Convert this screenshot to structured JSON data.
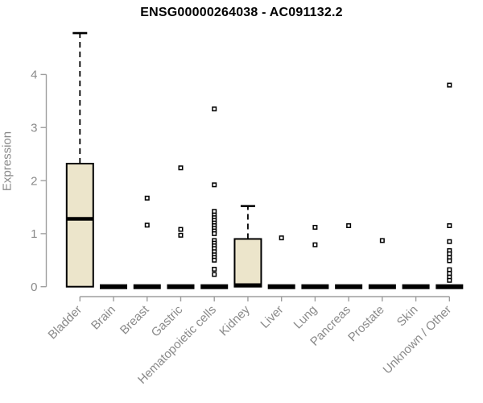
{
  "page": {
    "background": "#ffffff"
  },
  "chart_data": {
    "type": "box",
    "title": "ENSG00000264038 - AC091132.2",
    "ylabel": "Expression",
    "xlabel": "",
    "ylim": [
      0,
      4.85
    ],
    "yticks": [
      "0",
      "1",
      "2",
      "3",
      "4"
    ],
    "grid": "off",
    "legend": "none",
    "marker": "open-square",
    "categories": [
      "Bladder",
      "Brain",
      "Breast",
      "Gastric",
      "Hematopoietic cells",
      "Kidney",
      "Liver",
      "Lung",
      "Pancreas",
      "Prostate",
      "Skin",
      "Unknown / Other"
    ],
    "boxes": [
      {
        "category": "Bladder",
        "q1": 0,
        "median": 1.28,
        "q3": 2.32,
        "whisker_low": 0,
        "whisker_high": 4.78,
        "outliers": []
      },
      {
        "category": "Brain",
        "q1": 0,
        "median": 0,
        "q3": 0,
        "whisker_low": 0,
        "whisker_high": 0,
        "outliers": []
      },
      {
        "category": "Breast",
        "q1": 0,
        "median": 0,
        "q3": 0,
        "whisker_low": 0,
        "whisker_high": 0,
        "outliers": [
          1.67,
          1.16
        ]
      },
      {
        "category": "Gastric",
        "q1": 0,
        "median": 0,
        "q3": 0,
        "whisker_low": 0,
        "whisker_high": 0,
        "outliers": [
          2.24,
          1.08,
          0.97
        ]
      },
      {
        "category": "Hematopoietic cells",
        "q1": 0,
        "median": 0,
        "q3": 0,
        "whisker_low": 0,
        "whisker_high": 0,
        "outliers": [
          3.35,
          1.92,
          1.42,
          1.35,
          1.3,
          1.25,
          1.2,
          1.15,
          1.1,
          1.05,
          1.0,
          0.87,
          0.82,
          0.77,
          0.72,
          0.66,
          0.6,
          0.55,
          0.5,
          0.33,
          0.23
        ]
      },
      {
        "category": "Kidney",
        "q1": 0,
        "median": 0.03,
        "q3": 0.9,
        "whisker_low": 0,
        "whisker_high": 1.52,
        "outliers": []
      },
      {
        "category": "Liver",
        "q1": 0,
        "median": 0,
        "q3": 0,
        "whisker_low": 0,
        "whisker_high": 0,
        "outliers": [
          0.92
        ]
      },
      {
        "category": "Lung",
        "q1": 0,
        "median": 0,
        "q3": 0,
        "whisker_low": 0,
        "whisker_high": 0,
        "outliers": [
          1.12,
          0.79
        ]
      },
      {
        "category": "Pancreas",
        "q1": 0,
        "median": 0,
        "q3": 0,
        "whisker_low": 0,
        "whisker_high": 0,
        "outliers": [
          1.15
        ]
      },
      {
        "category": "Prostate",
        "q1": 0,
        "median": 0,
        "q3": 0,
        "whisker_low": 0,
        "whisker_high": 0,
        "outliers": [
          0.87
        ]
      },
      {
        "category": "Skin",
        "q1": 0,
        "median": 0,
        "q3": 0,
        "whisker_low": 0,
        "whisker_high": 0,
        "outliers": []
      },
      {
        "category": "Unknown / Other",
        "q1": 0,
        "median": 0,
        "q3": 0,
        "whisker_low": 0,
        "whisker_high": 0,
        "outliers": [
          3.8,
          1.15,
          0.85,
          0.68,
          0.62,
          0.55,
          0.49,
          0.32,
          0.25,
          0.18,
          0.12
        ]
      }
    ],
    "colors": {
      "box_fill": "#ECE5CB",
      "box_stroke": "#000000",
      "median": "#000000",
      "whisker": "#000000",
      "outlier_stroke": "#000000",
      "outlier_fill": "#ffffff",
      "axis_line": "#9e9e9e",
      "tick_label": "#8a8a8a",
      "title_color": "#000000"
    }
  }
}
